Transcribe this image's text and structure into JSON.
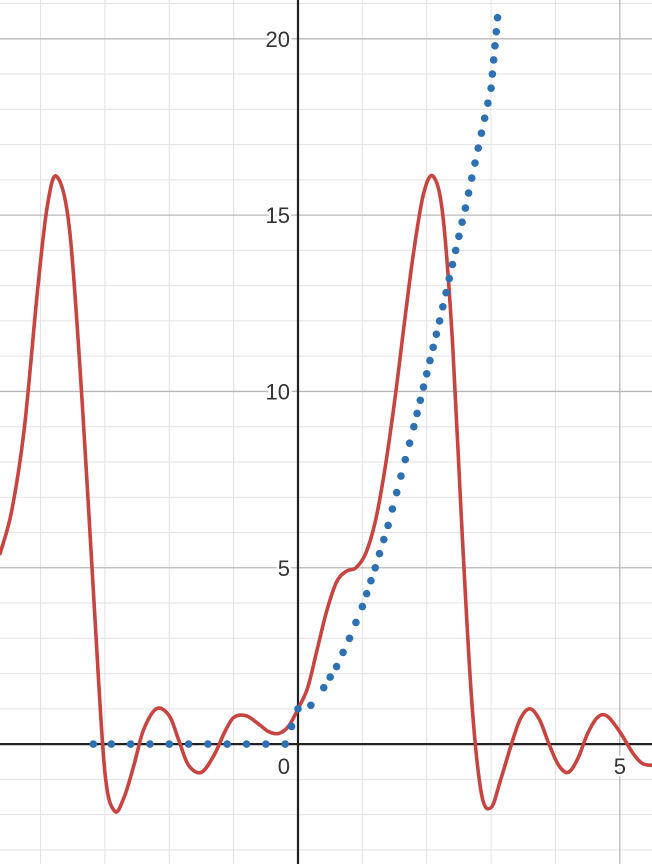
{
  "chart_data": {
    "type": "line",
    "title": "",
    "xlabel": "",
    "ylabel": "",
    "xlim": [
      -4.63,
      5.5
    ],
    "ylim": [
      -3.4,
      21.1
    ],
    "grid": true,
    "legend": "none",
    "x_ticks": [
      {
        "value": 0,
        "label": "0"
      },
      {
        "value": 5,
        "label": "5"
      }
    ],
    "y_ticks": [
      {
        "value": 5,
        "label": "5"
      },
      {
        "value": 10,
        "label": "10"
      },
      {
        "value": 15,
        "label": "15"
      },
      {
        "value": 20,
        "label": "20"
      }
    ],
    "series": [
      {
        "style": "solid",
        "color": "#c74440",
        "x": [
          -4.63,
          -4.45,
          -4.25,
          -4.05,
          -3.9,
          -3.75,
          -3.55,
          -3.35,
          -3.15,
          -3.0,
          -2.85,
          -2.7,
          -2.55,
          -2.4,
          -2.2,
          -2.0,
          -1.85,
          -1.7,
          -1.5,
          -1.3,
          -1.15,
          -1.0,
          -0.8,
          -0.6,
          -0.45,
          -0.3,
          -0.15,
          0.0,
          0.15,
          0.3,
          0.45,
          0.6,
          0.75,
          0.9,
          1.05,
          1.2,
          1.35,
          1.5,
          1.65,
          1.8,
          1.95,
          2.1,
          2.25,
          2.4,
          2.55,
          2.7,
          2.85,
          3.0,
          3.15,
          3.3,
          3.45,
          3.6,
          3.75,
          3.9,
          4.05,
          4.2,
          4.35,
          4.5,
          4.65,
          4.8,
          5.0,
          5.2,
          5.35,
          5.5
        ],
        "y": [
          5.4,
          6.6,
          9.0,
          12.8,
          15.2,
          16.1,
          14.6,
          9.6,
          3.4,
          -0.8,
          -1.9,
          -1.5,
          -0.6,
          0.4,
          1.0,
          0.8,
          0.1,
          -0.6,
          -0.8,
          -0.3,
          0.3,
          0.75,
          0.8,
          0.55,
          0.35,
          0.3,
          0.5,
          1.0,
          1.6,
          2.7,
          3.8,
          4.6,
          4.9,
          5.0,
          5.4,
          6.3,
          7.8,
          9.7,
          11.9,
          14.0,
          15.6,
          16.1,
          15.0,
          11.4,
          6.0,
          1.2,
          -1.4,
          -1.8,
          -1.0,
          -0.1,
          0.7,
          1.0,
          0.7,
          0.0,
          -0.6,
          -0.8,
          -0.4,
          0.3,
          0.75,
          0.8,
          0.35,
          -0.25,
          -0.55,
          -0.6
        ]
      },
      {
        "style": "dotted",
        "color": "#2d70b3",
        "x": [
          -3.18,
          -2.9,
          -2.6,
          -2.3,
          -2.0,
          -1.7,
          -1.4,
          -1.1,
          -0.8,
          -0.5,
          -0.2,
          0.0,
          0.2,
          0.4,
          0.6,
          0.8,
          1.0,
          1.2,
          1.4,
          1.6,
          1.8,
          2.0,
          2.2,
          2.4,
          2.6,
          2.8,
          3.0,
          3.1
        ],
        "y": [
          0,
          0,
          0,
          0,
          0,
          0,
          0,
          0,
          0,
          0,
          0,
          1.0,
          1.1,
          1.6,
          2.2,
          3.0,
          3.9,
          5.0,
          6.2,
          7.6,
          9.0,
          10.5,
          12.0,
          13.6,
          15.2,
          16.9,
          18.6,
          20.6
        ]
      }
    ]
  }
}
